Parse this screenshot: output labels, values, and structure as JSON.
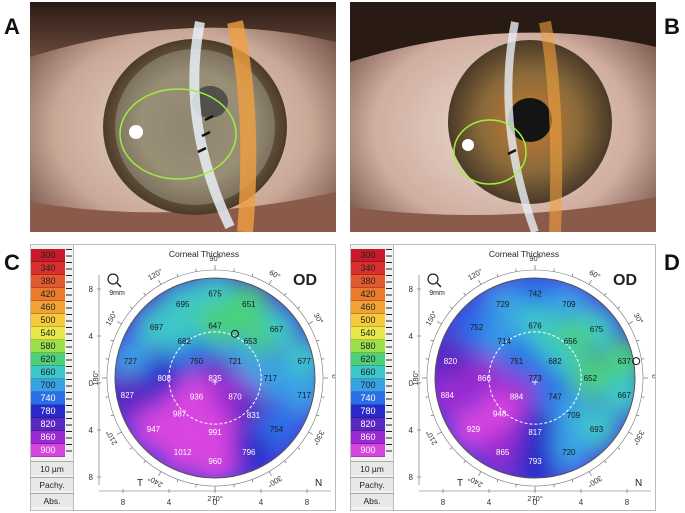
{
  "panels": {
    "A": {
      "letter": "A"
    },
    "B": {
      "letter": "B"
    },
    "C": {
      "letter": "C",
      "title": "Corneal Thickness",
      "eye": "OD",
      "zoom": "9mm",
      "nasal": "N",
      "temporal": "T",
      "values": [
        {
          "label": "675",
          "x": 0.0,
          "y": 5.5
        },
        {
          "label": "695",
          "x": -2.1,
          "y": 4.8
        },
        {
          "label": "651",
          "x": 2.2,
          "y": 4.8
        },
        {
          "label": "697",
          "x": -3.8,
          "y": 3.3
        },
        {
          "label": "647",
          "x": 0.0,
          "y": 3.4
        },
        {
          "label": "667",
          "x": 4.0,
          "y": 3.2
        },
        {
          "label": "682",
          "x": -2.0,
          "y": 2.4
        },
        {
          "label": "653",
          "x": 2.3,
          "y": 2.4
        },
        {
          "label": "727",
          "x": -5.5,
          "y": 1.1
        },
        {
          "label": "750",
          "x": -1.2,
          "y": 1.1
        },
        {
          "label": "721",
          "x": 1.3,
          "y": 1.1
        },
        {
          "label": "677",
          "x": 5.8,
          "y": 1.1
        },
        {
          "label": "808",
          "x": -3.3,
          "y": 0.0
        },
        {
          "label": "835",
          "x": 0.0,
          "y": 0.0
        },
        {
          "label": "717",
          "x": 3.6,
          "y": 0.0
        },
        {
          "label": "827",
          "x": -5.7,
          "y": -1.1
        },
        {
          "label": "936",
          "x": -1.2,
          "y": -1.2
        },
        {
          "label": "870",
          "x": 1.3,
          "y": -1.2
        },
        {
          "label": "717",
          "x": 5.8,
          "y": -1.1
        },
        {
          "label": "987",
          "x": -2.3,
          "y": -2.3
        },
        {
          "label": "831",
          "x": 2.5,
          "y": -2.4
        },
        {
          "label": "947",
          "x": -4.0,
          "y": -3.3
        },
        {
          "label": "991",
          "x": 0.0,
          "y": -3.5
        },
        {
          "label": "754",
          "x": 4.0,
          "y": -3.3
        },
        {
          "label": "1012",
          "x": -2.1,
          "y": -4.8
        },
        {
          "label": "796",
          "x": 2.2,
          "y": -4.8
        },
        {
          "label": "960",
          "x": 0.0,
          "y": -5.4
        }
      ]
    },
    "D": {
      "letter": "D",
      "title": "Corneal Thickness",
      "eye": "OD",
      "zoom": "9mm",
      "nasal": "N",
      "temporal": "T",
      "values": [
        {
          "label": "742",
          "x": 0.0,
          "y": 5.5
        },
        {
          "label": "729",
          "x": -2.1,
          "y": 4.8
        },
        {
          "label": "709",
          "x": 2.2,
          "y": 4.8
        },
        {
          "label": "752",
          "x": -3.8,
          "y": 3.3
        },
        {
          "label": "676",
          "x": 0.0,
          "y": 3.4
        },
        {
          "label": "675",
          "x": 4.0,
          "y": 3.2
        },
        {
          "label": "714",
          "x": -2.0,
          "y": 2.4
        },
        {
          "label": "656",
          "x": 2.3,
          "y": 2.4
        },
        {
          "label": "820",
          "x": -5.5,
          "y": 1.1
        },
        {
          "label": "751",
          "x": -1.2,
          "y": 1.1
        },
        {
          "label": "682",
          "x": 1.3,
          "y": 1.1
        },
        {
          "label": "637",
          "x": 5.8,
          "y": 1.1
        },
        {
          "label": "866",
          "x": -3.3,
          "y": 0.0
        },
        {
          "label": "773",
          "x": 0.0,
          "y": 0.0
        },
        {
          "label": "652",
          "x": 3.6,
          "y": 0.0
        },
        {
          "label": "884",
          "x": -5.7,
          "y": -1.1
        },
        {
          "label": "884",
          "x": -1.2,
          "y": -1.2
        },
        {
          "label": "747",
          "x": 1.3,
          "y": -1.2
        },
        {
          "label": "667",
          "x": 5.8,
          "y": -1.1
        },
        {
          "label": "948",
          "x": -2.3,
          "y": -2.3
        },
        {
          "label": "709",
          "x": 2.5,
          "y": -2.4
        },
        {
          "label": "929",
          "x": -4.0,
          "y": -3.3
        },
        {
          "label": "817",
          "x": 0.0,
          "y": -3.5
        },
        {
          "label": "693",
          "x": 4.0,
          "y": -3.3
        },
        {
          "label": "865",
          "x": -2.1,
          "y": -4.8
        },
        {
          "label": "720",
          "x": 2.2,
          "y": -4.8
        },
        {
          "label": "793",
          "x": 0.0,
          "y": -5.4
        }
      ]
    }
  },
  "scale": {
    "levels": [
      "300",
      "340",
      "380",
      "420",
      "460",
      "500",
      "540",
      "580",
      "620",
      "660",
      "700",
      "740",
      "780",
      "820",
      "860",
      "900"
    ],
    "colors": [
      "#c81a2a",
      "#d8302c",
      "#e25a2e",
      "#ea7a2c",
      "#f2a232",
      "#f6cc3c",
      "#e8e84a",
      "#9ae04c",
      "#4cd07a",
      "#3cc8c8",
      "#3aa0e6",
      "#2a6ee8",
      "#2a2ac8",
      "#5a28c0",
      "#9a2ad0",
      "#d844e0"
    ],
    "step": "10 µm",
    "mode": "Pachy.",
    "abs": "Abs."
  },
  "polar": {
    "angles": [
      "90°",
      "60°",
      "30°",
      "0°",
      "330°",
      "300°",
      "270°",
      "240°",
      "210°",
      "180°",
      "150°",
      "120°"
    ],
    "axis_ticks": [
      "8",
      "4",
      "0",
      "4",
      "8"
    ]
  }
}
